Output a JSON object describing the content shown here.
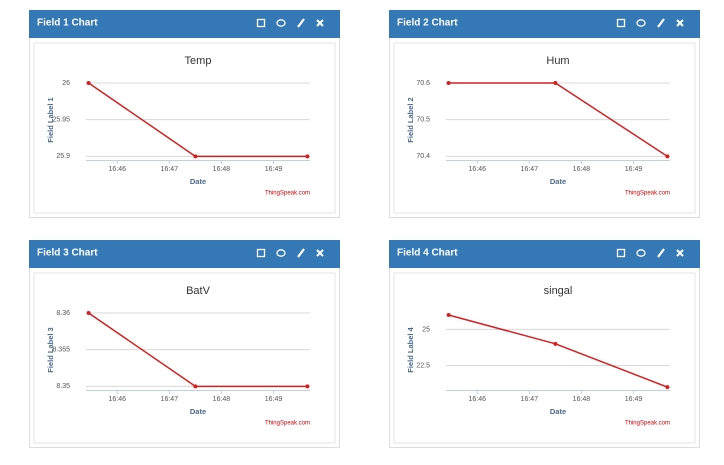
{
  "chart_data": [
    {
      "type": "line",
      "panel_title": "Field 1 Chart",
      "title": "Temp",
      "x_label": "Date",
      "y_label": "Field Label 1",
      "credit": "ThingSpeak.com",
      "x": [
        1005.45,
        1007.5,
        1009.65
      ],
      "values": [
        26,
        25.9,
        25.9
      ],
      "color": "#d62020",
      "xlim": [
        1005.4,
        1009.7
      ],
      "xticks": [
        {
          "value": 1006,
          "label": "16:46"
        },
        {
          "value": 1007,
          "label": "16:47"
        },
        {
          "value": 1008,
          "label": "16:48"
        },
        {
          "value": 1009,
          "label": "16:49"
        }
      ],
      "ylim": [
        25.895,
        26.015
      ],
      "yticks": [
        25.9,
        25.95,
        26
      ],
      "grid": true
    },
    {
      "type": "line",
      "panel_title": "Field 2 Chart",
      "title": "Hum",
      "x_label": "Date",
      "y_label": "Field Label 2",
      "credit": "ThingSpeak.com",
      "x": [
        1005.45,
        1007.5,
        1009.65
      ],
      "values": [
        70.6,
        70.6,
        70.4
      ],
      "color": "#d62020",
      "xlim": [
        1005.4,
        1009.7
      ],
      "xticks": [
        {
          "value": 1006,
          "label": "16:46"
        },
        {
          "value": 1007,
          "label": "16:47"
        },
        {
          "value": 1008,
          "label": "16:48"
        },
        {
          "value": 1009,
          "label": "16:49"
        }
      ],
      "ylim": [
        70.39,
        70.63
      ],
      "yticks": [
        70.4,
        70.5,
        70.6
      ],
      "grid": true
    },
    {
      "type": "line",
      "panel_title": "Field 3 Chart",
      "title": "BatV",
      "x_label": "Date",
      "y_label": "Field Label 3",
      "credit": "ThingSpeak.com",
      "x": [
        1005.45,
        1007.5,
        1009.65
      ],
      "values": [
        8.36,
        8.35,
        8.35
      ],
      "color": "#d62020",
      "xlim": [
        1005.4,
        1009.7
      ],
      "xticks": [
        {
          "value": 1006,
          "label": "16:46"
        },
        {
          "value": 1007,
          "label": "16:47"
        },
        {
          "value": 1008,
          "label": "16:48"
        },
        {
          "value": 1009,
          "label": "16:49"
        }
      ],
      "ylim": [
        8.3495,
        8.3615
      ],
      "yticks": [
        8.35,
        8.355,
        8.36
      ],
      "grid": true
    },
    {
      "type": "line",
      "panel_title": "Field 4 Chart",
      "title": "singal",
      "x_label": "Date",
      "y_label": "Field Label 4",
      "credit": "ThingSpeak.com",
      "x": [
        1005.45,
        1007.5,
        1009.65
      ],
      "values": [
        26,
        24,
        21
      ],
      "color": "#d62020",
      "xlim": [
        1005.4,
        1009.7
      ],
      "xticks": [
        {
          "value": 1006,
          "label": "16:46"
        },
        {
          "value": 1007,
          "label": "16:47"
        },
        {
          "value": 1008,
          "label": "16:48"
        },
        {
          "value": 1009,
          "label": "16:49"
        }
      ],
      "ylim": [
        20.8,
        26.9
      ],
      "yticks": [
        22.5,
        25
      ],
      "grid": true
    }
  ]
}
